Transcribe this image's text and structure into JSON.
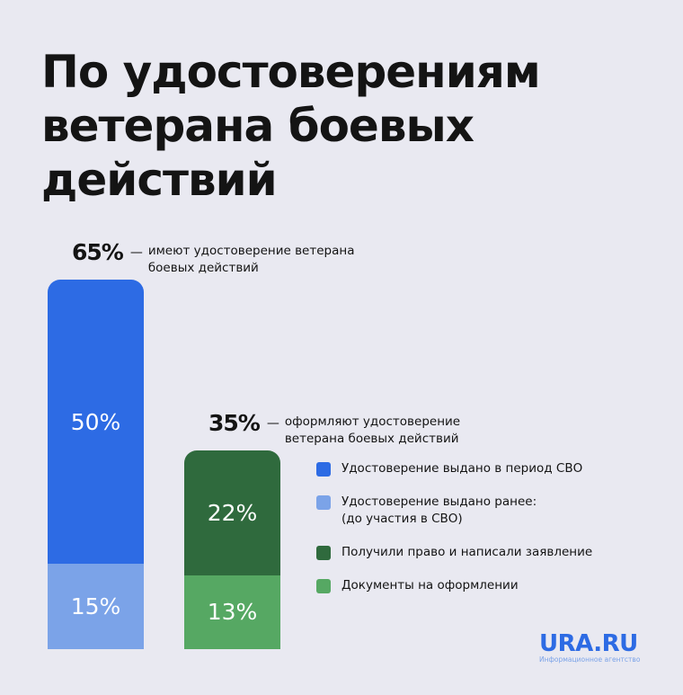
{
  "title": [
    "По удостоверениям",
    "ветерана боевых",
    "действий"
  ],
  "chart_data": {
    "type": "bar",
    "stacked": true,
    "ylim": [
      0,
      65
    ],
    "bars": [
      {
        "total_label": "65%",
        "total_text": "имеют удостоверение ветерана боевых действий",
        "segments": [
          {
            "name": "Удостоверение выдано ранее: (до участия в СВО)",
            "value": 15,
            "label": "15%",
            "color": "#7ba3e8"
          },
          {
            "name": "Удостоверение выдано в период СВО",
            "value": 50,
            "label": "50%",
            "color": "#2d6be4"
          }
        ]
      },
      {
        "total_label": "35%",
        "total_text": "оформляют удостоверение ветерана боевых действий",
        "segments": [
          {
            "name": "Документы на оформлении",
            "value": 13,
            "label": "13%",
            "color": "#56a863"
          },
          {
            "name": "Получили право и написали заявление",
            "value": 22,
            "label": "22%",
            "color": "#2f6a3d"
          }
        ]
      }
    ],
    "legend": [
      {
        "label": "Удостоверение выдано в период СВО",
        "color": "#2d6be4"
      },
      {
        "label": "Удостоверение выдано ранее:\n(до участия в СВО)",
        "color": "#7ba3e8"
      },
      {
        "label": "Получили право и написали заявление",
        "color": "#2f6a3d"
      },
      {
        "label": "Документы на оформлении",
        "color": "#56a863"
      }
    ]
  },
  "dash": "—",
  "logo": {
    "brand": "URA.RU",
    "sub": "Информационное агентство"
  }
}
